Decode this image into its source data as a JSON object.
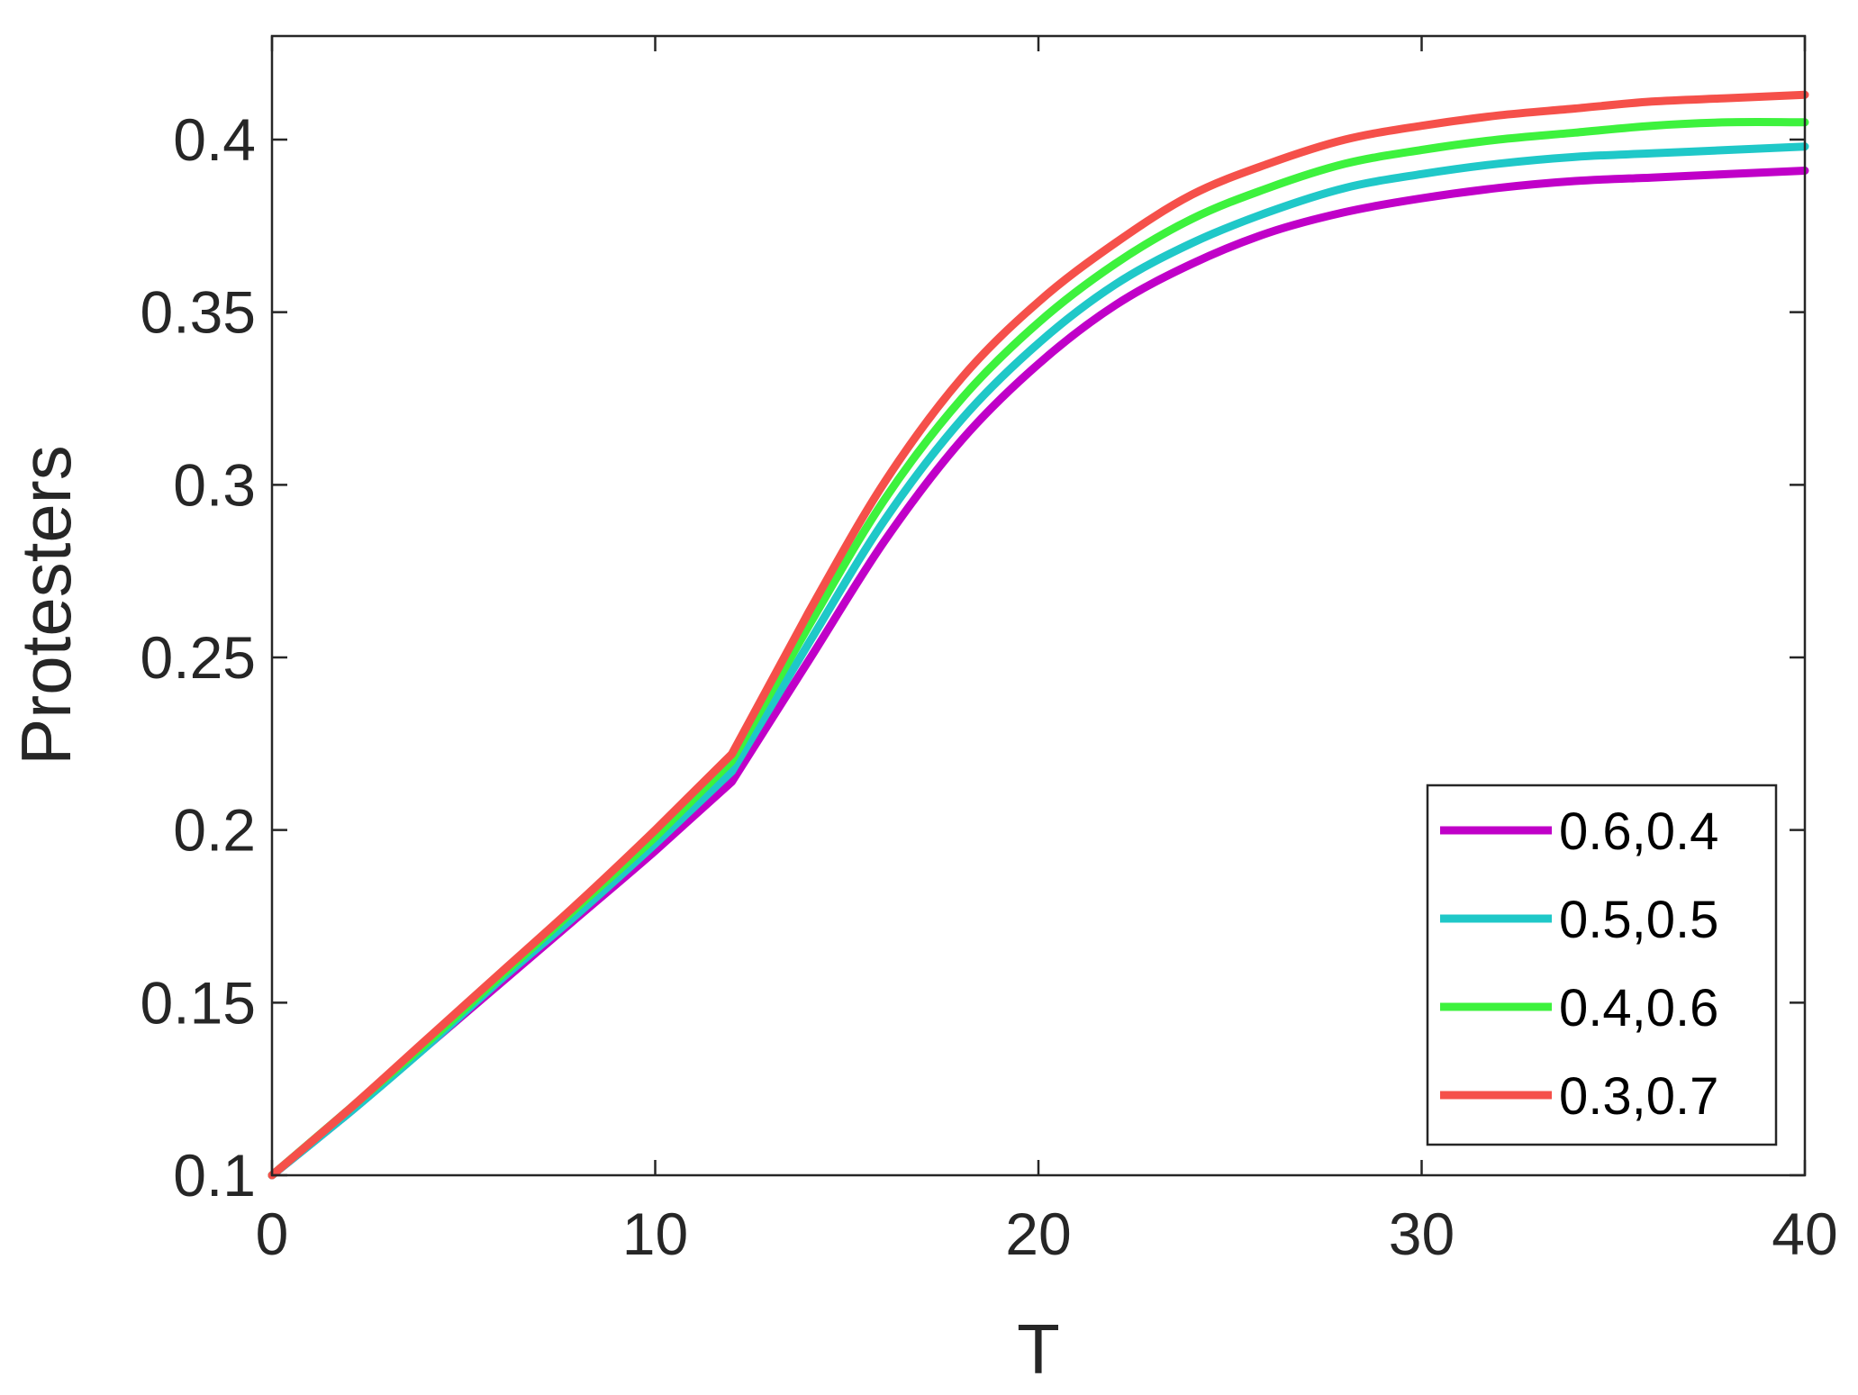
{
  "chart_data": {
    "type": "line",
    "xlabel": "T",
    "ylabel": "Protesters",
    "xlim": [
      0,
      40
    ],
    "ylim": [
      0.1,
      0.43
    ],
    "xticks": [
      0,
      10,
      20,
      30,
      40
    ],
    "xtick_labels": [
      "0",
      "10",
      "20",
      "30",
      "40"
    ],
    "yticks": [
      0.1,
      0.15,
      0.2,
      0.25,
      0.3,
      0.35,
      0.4
    ],
    "ytick_labels": [
      "0.1",
      "0.15",
      "0.2",
      "0.25",
      "0.3",
      "0.35",
      "0.4"
    ],
    "grid": false,
    "legend_position": "bottom-right",
    "x": [
      0,
      2,
      4,
      6,
      8,
      10,
      12,
      14,
      16,
      18,
      20,
      22,
      24,
      26,
      28,
      30,
      32,
      34,
      36,
      38,
      40
    ],
    "series": [
      {
        "name": "0.6,0.4",
        "color": "#c000c8",
        "values": [
          0.1,
          0.118,
          0.137,
          0.156,
          0.175,
          0.194,
          0.214,
          0.249,
          0.284,
          0.313,
          0.335,
          0.352,
          0.364,
          0.373,
          0.379,
          0.383,
          0.386,
          0.388,
          0.389,
          0.39,
          0.391
        ]
      },
      {
        "name": "0.5,0.5",
        "color": "#1fc8c8",
        "values": [
          0.1,
          0.118,
          0.137,
          0.157,
          0.176,
          0.196,
          0.217,
          0.254,
          0.29,
          0.319,
          0.341,
          0.358,
          0.37,
          0.379,
          0.386,
          0.39,
          0.393,
          0.395,
          0.396,
          0.397,
          0.398
        ]
      },
      {
        "name": "0.4,0.6",
        "color": "#3df23d",
        "values": [
          0.1,
          0.119,
          0.138,
          0.158,
          0.178,
          0.198,
          0.22,
          0.259,
          0.296,
          0.325,
          0.347,
          0.364,
          0.377,
          0.386,
          0.393,
          0.397,
          0.4,
          0.402,
          0.404,
          0.405,
          0.405
        ]
      },
      {
        "name": "0.3,0.7",
        "color": "#f5504a",
        "values": [
          0.1,
          0.119,
          0.139,
          0.159,
          0.179,
          0.2,
          0.222,
          0.263,
          0.301,
          0.331,
          0.353,
          0.37,
          0.384,
          0.393,
          0.4,
          0.404,
          0.407,
          0.409,
          0.411,
          0.412,
          0.413
        ]
      }
    ]
  }
}
